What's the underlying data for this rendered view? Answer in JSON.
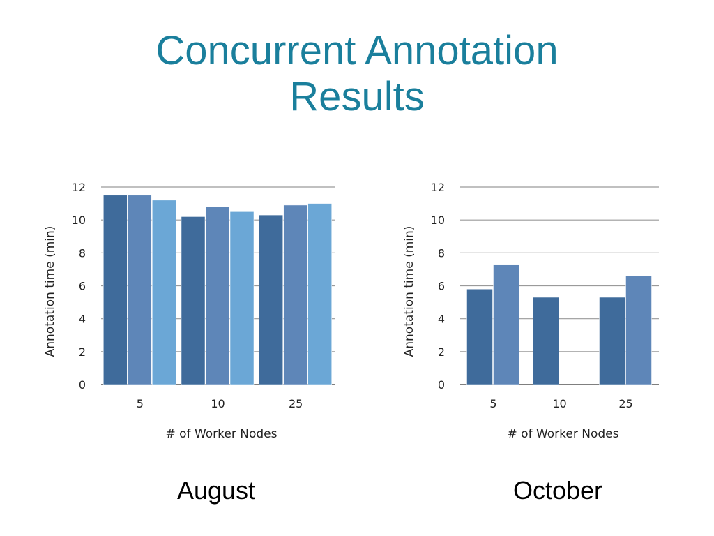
{
  "slide": {
    "title_line1": "Concurrent Annotation",
    "title_line2": "Results",
    "caption_left": "August",
    "caption_right": "October"
  },
  "chart_data": [
    {
      "type": "bar",
      "caption": "August",
      "categories": [
        "5",
        "10",
        "25"
      ],
      "series": [
        {
          "values": [
            11.5,
            10.2,
            10.3
          ],
          "color": "#3f6b9b"
        },
        {
          "values": [
            11.5,
            10.8,
            10.9
          ],
          "color": "#5e86b8"
        },
        {
          "values": [
            11.2,
            10.5,
            11.0
          ],
          "color": "#6ba7d6"
        }
      ],
      "xlabel": "# of Worker Nodes",
      "ylabel": "Annotation time (min)",
      "ylim": [
        0,
        12
      ],
      "yticks": [
        0,
        2,
        4,
        6,
        8,
        10,
        12
      ],
      "grid": true
    },
    {
      "type": "bar",
      "caption": "October",
      "categories": [
        "5",
        "10",
        "25"
      ],
      "series": [
        {
          "values": [
            5.8,
            5.3,
            5.3
          ],
          "color": "#3f6b9b"
        },
        {
          "values": [
            7.3,
            null,
            6.6
          ],
          "color": "#5e86b8"
        }
      ],
      "xlabel": "# of Worker Nodes",
      "ylabel": "Annotation time (min)",
      "ylim": [
        0,
        12
      ],
      "yticks": [
        0,
        2,
        4,
        6,
        8,
        10,
        12
      ],
      "grid": true
    }
  ]
}
